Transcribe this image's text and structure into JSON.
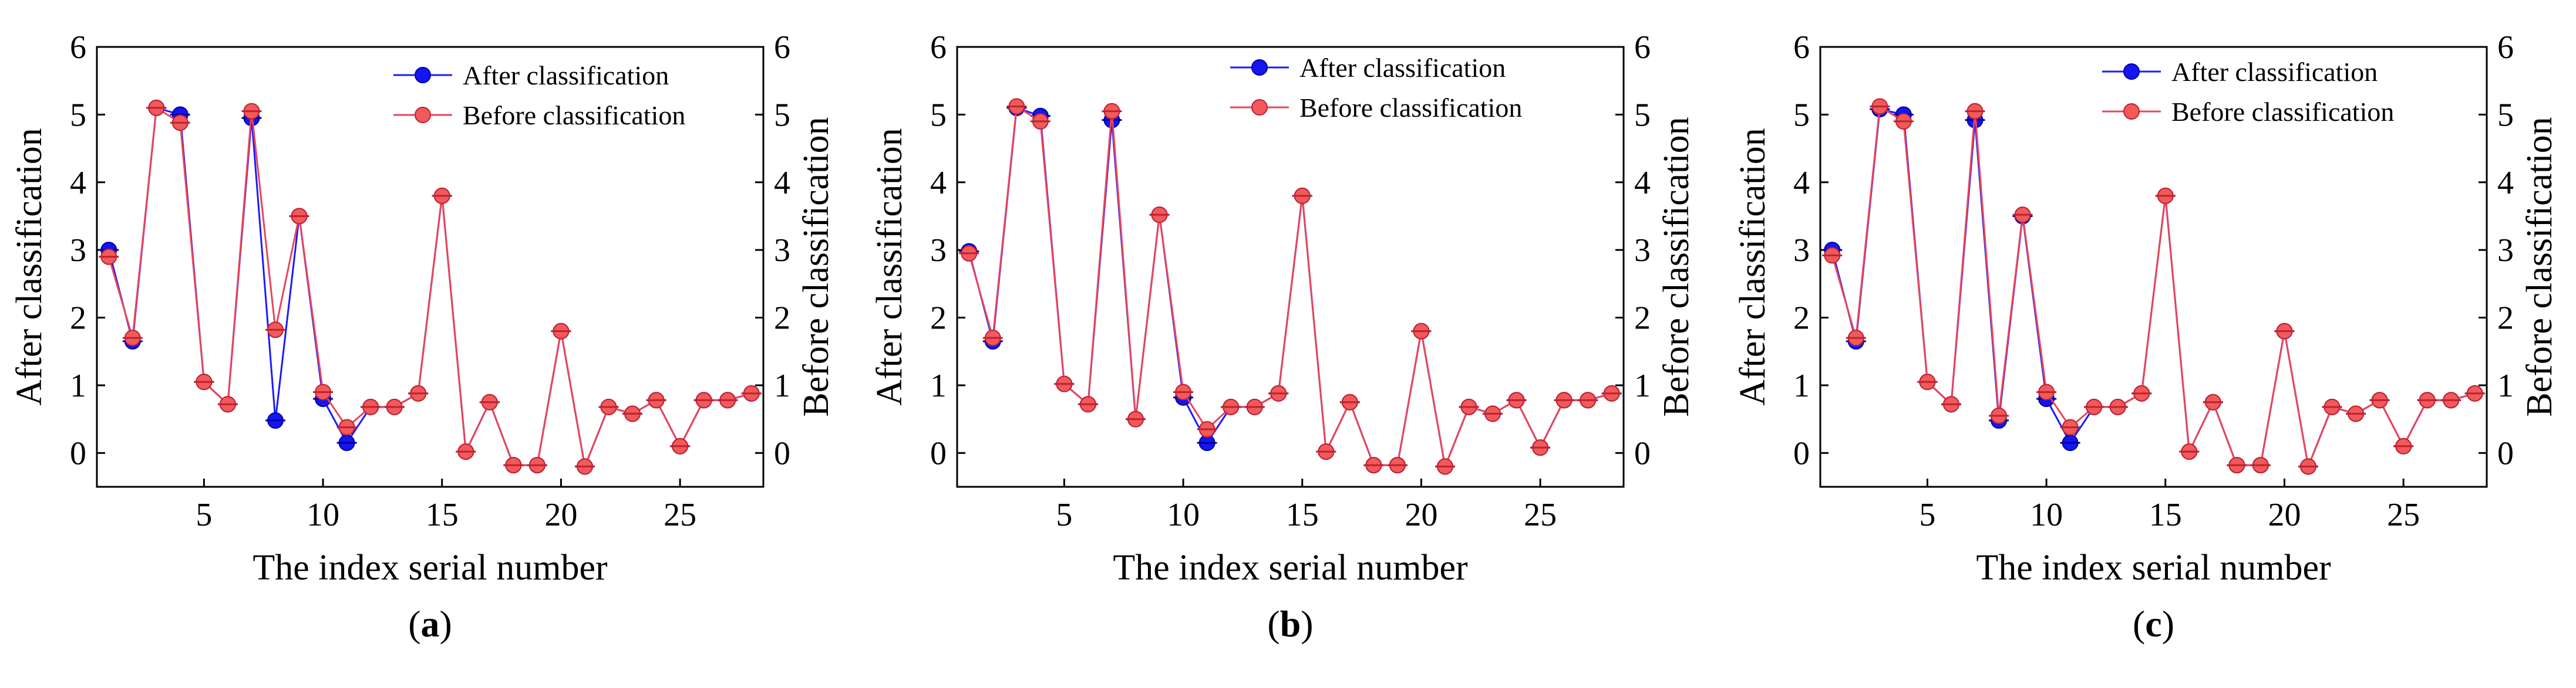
{
  "colors": {
    "after_line": "#1a1aff",
    "after_marker": "#1515ee",
    "before_line": "#e8455a",
    "before_marker": "#f05a5a",
    "axis": "#000000"
  },
  "chart_data": [
    {
      "type": "line",
      "panel_label": "(a)",
      "panel_letter": "a",
      "xlabel": "The index serial number",
      "ylabel_left": "After classification",
      "ylabel_right": "Before classification",
      "xlim": [
        0.5,
        28.5
      ],
      "ylim": [
        -0.5,
        6
      ],
      "xticks": [
        5,
        10,
        15,
        20,
        25
      ],
      "yticks": [
        0,
        1,
        2,
        3,
        4,
        5,
        6
      ],
      "legend_position": "top-right",
      "x": [
        1,
        2,
        3,
        4,
        5,
        6,
        7,
        8,
        9,
        10,
        11,
        12,
        13,
        14,
        15,
        16,
        17,
        18,
        19,
        20,
        21,
        22,
        23,
        24,
        25,
        26,
        27,
        28
      ],
      "series": [
        {
          "name": "After classification",
          "values": [
            3.0,
            1.65,
            5.1,
            5.0,
            1.05,
            0.72,
            4.95,
            0.48,
            3.5,
            0.8,
            0.15,
            0.68,
            0.68,
            0.88,
            3.8,
            0.02,
            0.75,
            -0.18,
            -0.18,
            1.8,
            -0.2,
            0.68,
            0.58,
            0.78,
            0.1,
            0.78,
            0.78,
            0.88
          ]
        },
        {
          "name": "Before classification",
          "values": [
            2.9,
            1.7,
            5.1,
            4.88,
            1.05,
            0.72,
            5.05,
            1.82,
            3.5,
            0.9,
            0.38,
            0.68,
            0.68,
            0.88,
            3.8,
            0.02,
            0.75,
            -0.18,
            -0.18,
            1.8,
            -0.2,
            0.68,
            0.58,
            0.78,
            0.1,
            0.78,
            0.78,
            0.88
          ]
        }
      ]
    },
    {
      "type": "line",
      "panel_label": "(b)",
      "panel_letter": "b",
      "xlabel": "The index serial number",
      "ylabel_left": "After classification",
      "ylabel_right": "Before classification",
      "xlim": [
        0.5,
        28.5
      ],
      "ylim": [
        -0.5,
        6
      ],
      "xticks": [
        5,
        10,
        15,
        20,
        25
      ],
      "yticks": [
        0,
        1,
        2,
        3,
        4,
        5,
        6
      ],
      "legend_position": "top-right",
      "x": [
        1,
        2,
        3,
        4,
        5,
        6,
        7,
        8,
        9,
        10,
        11,
        12,
        13,
        14,
        15,
        16,
        17,
        18,
        19,
        20,
        21,
        22,
        23,
        24,
        25,
        26,
        27,
        28
      ],
      "series": [
        {
          "name": "After classification",
          "values": [
            2.98,
            1.65,
            5.1,
            4.98,
            1.02,
            0.72,
            4.92,
            0.5,
            3.52,
            0.82,
            0.15,
            0.68,
            0.68,
            0.88,
            3.8,
            0.02,
            0.75,
            -0.18,
            -0.18,
            1.8,
            -0.2,
            0.68,
            0.58,
            0.78,
            0.08,
            0.78,
            0.78,
            0.88
          ]
        },
        {
          "name": "Before classification",
          "values": [
            2.95,
            1.7,
            5.12,
            4.9,
            1.02,
            0.72,
            5.05,
            0.5,
            3.52,
            0.9,
            0.35,
            0.68,
            0.68,
            0.88,
            3.8,
            0.02,
            0.75,
            -0.18,
            -0.18,
            1.8,
            -0.2,
            0.68,
            0.58,
            0.78,
            0.08,
            0.78,
            0.78,
            0.88
          ]
        }
      ]
    },
    {
      "type": "line",
      "panel_label": "(c)",
      "panel_letter": "c",
      "xlabel": "The index serial number",
      "ylabel_left": "After classification",
      "ylabel_right": "Before classification",
      "xlim": [
        0.5,
        28.5
      ],
      "ylim": [
        -0.5,
        6
      ],
      "xticks": [
        5,
        10,
        15,
        20,
        25
      ],
      "yticks": [
        0,
        1,
        2,
        3,
        4,
        5,
        6
      ],
      "legend_position": "top-right",
      "x": [
        1,
        2,
        3,
        4,
        5,
        6,
        7,
        8,
        9,
        10,
        11,
        12,
        13,
        14,
        15,
        16,
        17,
        18,
        19,
        20,
        21,
        22,
        23,
        24,
        25,
        26,
        27,
        28
      ],
      "series": [
        {
          "name": "After classification",
          "values": [
            3.0,
            1.65,
            5.08,
            5.0,
            1.05,
            0.72,
            4.92,
            0.48,
            3.5,
            0.8,
            0.15,
            0.68,
            0.68,
            0.88,
            3.8,
            0.02,
            0.75,
            -0.18,
            -0.18,
            1.8,
            -0.2,
            0.68,
            0.58,
            0.78,
            0.1,
            0.78,
            0.78,
            0.88
          ]
        },
        {
          "name": "Before classification",
          "values": [
            2.92,
            1.7,
            5.12,
            4.9,
            1.05,
            0.72,
            5.05,
            0.55,
            3.52,
            0.9,
            0.38,
            0.68,
            0.68,
            0.88,
            3.8,
            0.02,
            0.75,
            -0.18,
            -0.18,
            1.8,
            -0.2,
            0.68,
            0.58,
            0.78,
            0.1,
            0.78,
            0.78,
            0.88
          ]
        }
      ]
    }
  ]
}
